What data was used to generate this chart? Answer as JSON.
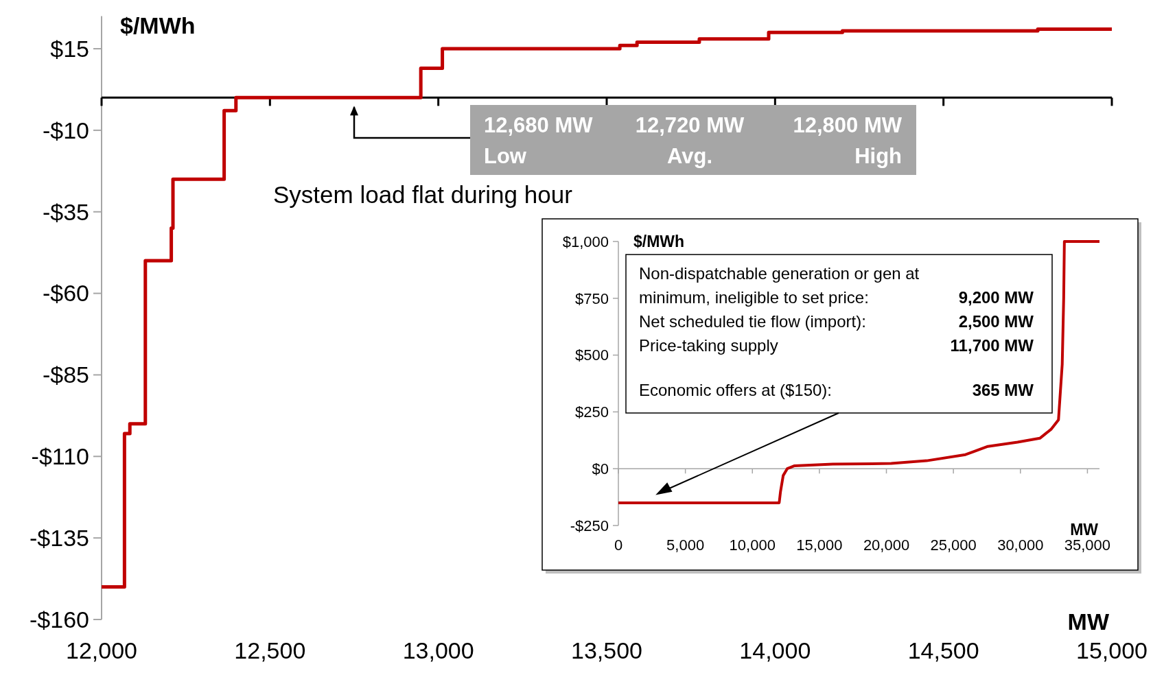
{
  "chart_data": [
    {
      "type": "step",
      "ylabel": "$/MWh",
      "xlabel": "MW",
      "color": "#c00000",
      "x": [
        12000,
        12068,
        12084,
        12130,
        12207,
        12212,
        12364,
        12399,
        12948,
        13012,
        13539,
        13590,
        13775,
        13981,
        14200,
        14780,
        15000
      ],
      "values": [
        -150,
        -103,
        -100,
        -50,
        -40,
        -25,
        -4,
        0,
        9,
        15,
        16,
        17,
        18,
        20,
        20.5,
        21,
        21
      ],
      "xlim": [
        12000,
        15000
      ],
      "ylim": [
        -160,
        25
      ],
      "xticks": [
        {
          "value": 12000,
          "label": "12,000"
        },
        {
          "value": 12500,
          "label": "12,500"
        },
        {
          "value": 13000,
          "label": "13,000"
        },
        {
          "value": 13500,
          "label": "13,500"
        },
        {
          "value": 14000,
          "label": "14,000"
        },
        {
          "value": 14500,
          "label": "14,500"
        },
        {
          "value": 15000,
          "label": "15,000"
        }
      ],
      "yticks": [
        {
          "value": 15,
          "label": "$15"
        },
        {
          "value": -10,
          "label": "-$10"
        },
        {
          "value": -35,
          "label": "-$35"
        },
        {
          "value": -60,
          "label": "-$60"
        },
        {
          "value": -85,
          "label": "-$85"
        },
        {
          "value": -110,
          "label": "-$110"
        },
        {
          "value": -135,
          "label": "-$135"
        },
        {
          "value": -160,
          "label": "-$160"
        }
      ],
      "annotations": [
        "System load flat during hour",
        "12,680 MW",
        "Low",
        "12,720 MW",
        "Avg.",
        "12,800 MW",
        "High"
      ]
    },
    {
      "type": "line",
      "ylabel": "$/MWh",
      "xlabel": "MW",
      "color": "#c00000",
      "x": [
        0,
        12000,
        12100,
        12300,
        12600,
        13150,
        16000,
        20360,
        23000,
        25900,
        26500,
        27570,
        29790,
        31450,
        32280,
        32840,
        33120,
        33230,
        33280,
        35900
      ],
      "values": [
        -150,
        -150,
        -100,
        -30,
        0,
        13,
        20,
        23,
        35,
        62,
        75,
        98,
        117,
        134,
        173,
        215,
        460,
        754,
        1000,
        1000
      ],
      "xlim": [
        0,
        35900
      ],
      "ylim": [
        -250,
        1000
      ],
      "xticks": [
        0,
        {
          "value": 5000,
          "label": "5,000"
        },
        {
          "value": 10000,
          "label": "10,000"
        },
        {
          "value": 15000,
          "label": "15,000"
        },
        {
          "value": 20000,
          "label": "20,000"
        },
        {
          "value": 25000,
          "label": "25,000"
        },
        {
          "value": 30000,
          "label": "30,000"
        },
        {
          "value": 35000,
          "label": "35,000"
        }
      ],
      "yticks": [
        {
          "value": 1000,
          "label": "$1,000"
        },
        {
          "value": 750,
          "label": "$750"
        },
        {
          "value": 500,
          "label": "$500"
        },
        {
          "value": 250,
          "label": "$250"
        },
        {
          "value": 0,
          "label": "$0"
        },
        {
          "value": -250,
          "label": "-$250"
        }
      ],
      "annotations": [
        "Non-dispatchable generation or gen at minimum, ineligible to set price:",
        "9,200 MW",
        "Net scheduled tie flow (import):",
        "2,500 MW",
        "Price-taking supply",
        "11,700 MW",
        "Economic offers at ($150):",
        "365 MW"
      ]
    }
  ]
}
